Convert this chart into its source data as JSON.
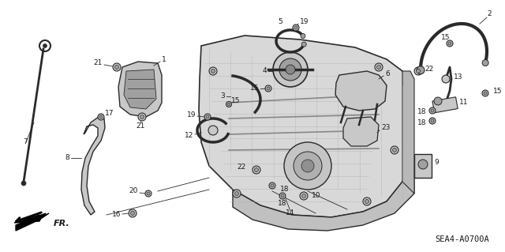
{
  "diagram_code": "SEA4-A0700A",
  "fr_label": "FR.",
  "background_color": "#ffffff",
  "fig_width": 6.4,
  "fig_height": 3.19,
  "dpi": 100,
  "text_color": "#1a1a1a",
  "line_color": "#2a2a2a",
  "part_color": "#3a3a3a",
  "fill_light": "#c8c8c8",
  "fill_mid": "#a0a0a0",
  "fill_dark": "#707070",
  "label_fontsize": 6.5,
  "code_fontsize": 7.5
}
